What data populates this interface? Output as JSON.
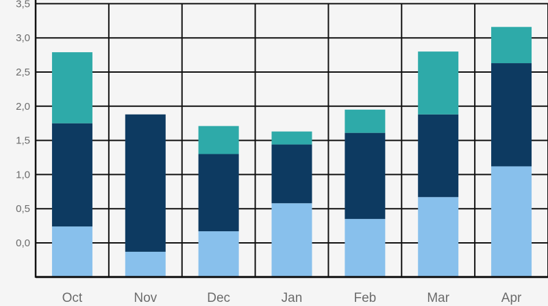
{
  "chart_data": {
    "type": "bar",
    "stacked": true,
    "categories": [
      "Oct",
      "Nov",
      "Dec",
      "Jan",
      "Feb",
      "Mar",
      "Apr"
    ],
    "y_ticks": [
      "0,0",
      "0,5",
      "1,0",
      "1,5",
      "2,0",
      "2,5",
      "3,0",
      "3,5"
    ],
    "ylim": [
      -0.5,
      3.5
    ],
    "grid": true,
    "legend": "none",
    "series": [
      {
        "values": [
          0.74,
          0.37,
          0.67,
          1.08,
          0.85,
          1.17,
          1.62
        ],
        "color": "#88c0ec"
      },
      {
        "values": [
          1.51,
          2.01,
          1.13,
          0.86,
          1.26,
          1.21,
          1.51
        ],
        "color": "#0d3a61"
      },
      {
        "values": [
          1.04,
          0.0,
          0.41,
          0.19,
          0.34,
          0.92,
          0.53
        ],
        "color": "#2eaaa9"
      }
    ]
  },
  "colors": {
    "background": "#f5f5f5",
    "grid": "#111111",
    "tick_text": "#6b6b6b"
  }
}
